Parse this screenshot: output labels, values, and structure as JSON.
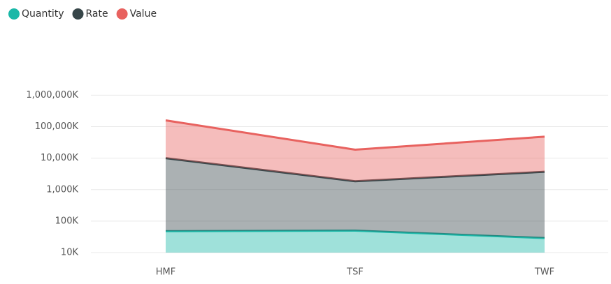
{
  "chart_data": {
    "type": "area",
    "stacked": true,
    "log_scale": true,
    "grid": true,
    "categories": [
      "HMF",
      "TSF",
      "TWF"
    ],
    "series": [
      {
        "name": "Quantity",
        "color": "#1ab8a8",
        "values": [
          48000,
          50000,
          29000
        ]
      },
      {
        "name": "Rate",
        "color": "#374649",
        "values": [
          9950000,
          1800000,
          3660000
        ]
      },
      {
        "name": "Value",
        "color": "#e8625f",
        "values": [
          148000000,
          16700000,
          44300000
        ]
      }
    ],
    "ylim": [
      10000,
      1000000000000
    ],
    "yticks": [
      {
        "value": 10000,
        "label": "10K"
      },
      {
        "value": 100000,
        "label": "100K"
      },
      {
        "value": 1000000,
        "label": "1,000K"
      },
      {
        "value": 10000000,
        "label": "10,000K"
      },
      {
        "value": 100000000,
        "label": "100,000K"
      },
      {
        "value": 1000000000,
        "label": "1,000,000K"
      }
    ]
  }
}
